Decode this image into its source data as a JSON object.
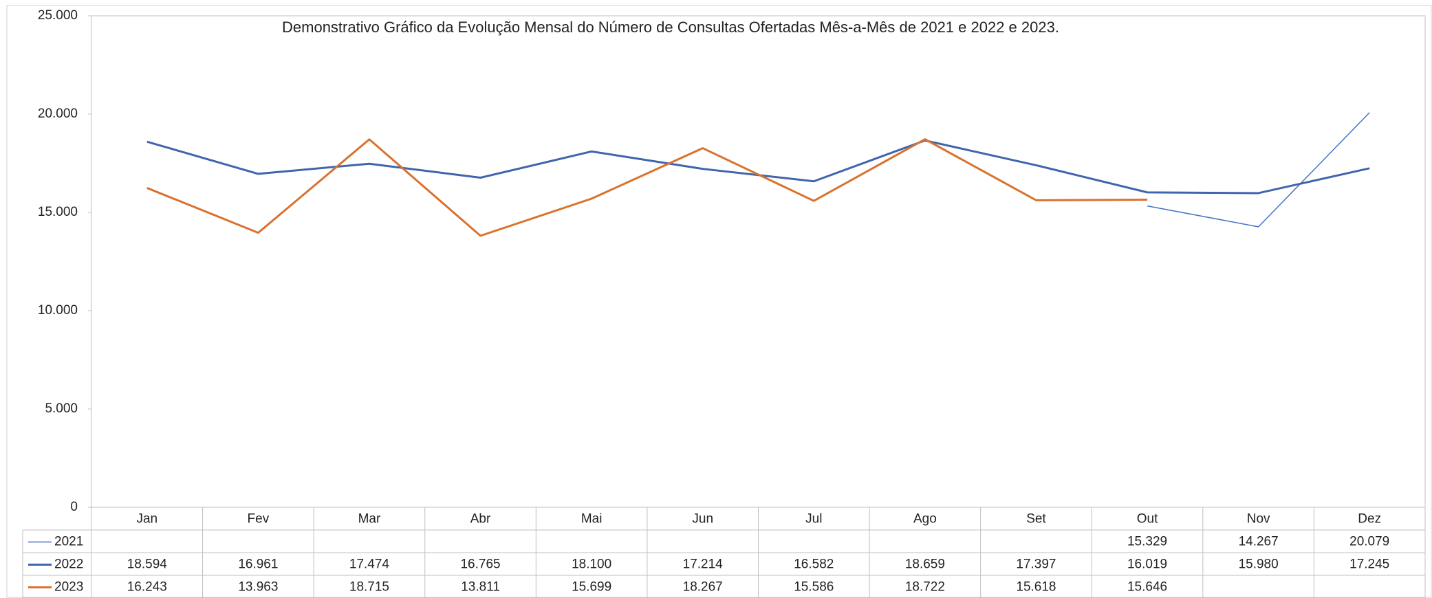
{
  "chart_data": {
    "type": "line",
    "title": "Demonstrativo Gráfico da Evolução Mensal do Número de Consultas Ofertadas Mês-a-Mês de 2021 e 2022 e 2023.",
    "categories": [
      "Jan",
      "Fev",
      "Mar",
      "Abr",
      "Mai",
      "Jun",
      "Jul",
      "Ago",
      "Set",
      "Out",
      "Nov",
      "Dez"
    ],
    "series": [
      {
        "name": "2021",
        "color": "#4472c4",
        "width": 1.5,
        "values": [
          null,
          null,
          null,
          null,
          null,
          null,
          null,
          null,
          null,
          15329,
          14267,
          20079
        ],
        "value_labels": [
          null,
          null,
          null,
          null,
          null,
          null,
          null,
          null,
          null,
          "15.329",
          "14.267",
          "20.079"
        ]
      },
      {
        "name": "2022",
        "color": "#3f65ad",
        "width": 3,
        "values": [
          18594,
          16961,
          17474,
          16765,
          18100,
          17214,
          16582,
          18659,
          17397,
          16019,
          15980,
          17245
        ],
        "value_labels": [
          "18.594",
          "16.961",
          "17.474",
          "16.765",
          "18.100",
          "17.214",
          "16.582",
          "18.659",
          "17.397",
          "16.019",
          "15.980",
          "17.245"
        ]
      },
      {
        "name": "2023",
        "color": "#d9722e",
        "width": 3,
        "values": [
          16243,
          13963,
          18715,
          13811,
          15699,
          18267,
          15586,
          18722,
          15618,
          15646,
          null,
          null
        ],
        "value_labels": [
          "16.243",
          "13.963",
          "18.715",
          "13.811",
          "15.699",
          "18.267",
          "15.586",
          "18.722",
          "15.618",
          "15.646",
          null,
          null
        ]
      }
    ],
    "ylim": [
      0,
      25000
    ],
    "yticks": [
      0,
      {
        "value": 5000,
        "label": "5.000"
      },
      {
        "value": 10000,
        "label": "10.000"
      },
      {
        "value": 15000,
        "label": "15.000"
      },
      {
        "value": 20000,
        "label": "20.000"
      },
      {
        "value": 25000,
        "label": "25.000"
      }
    ],
    "grid": false
  }
}
